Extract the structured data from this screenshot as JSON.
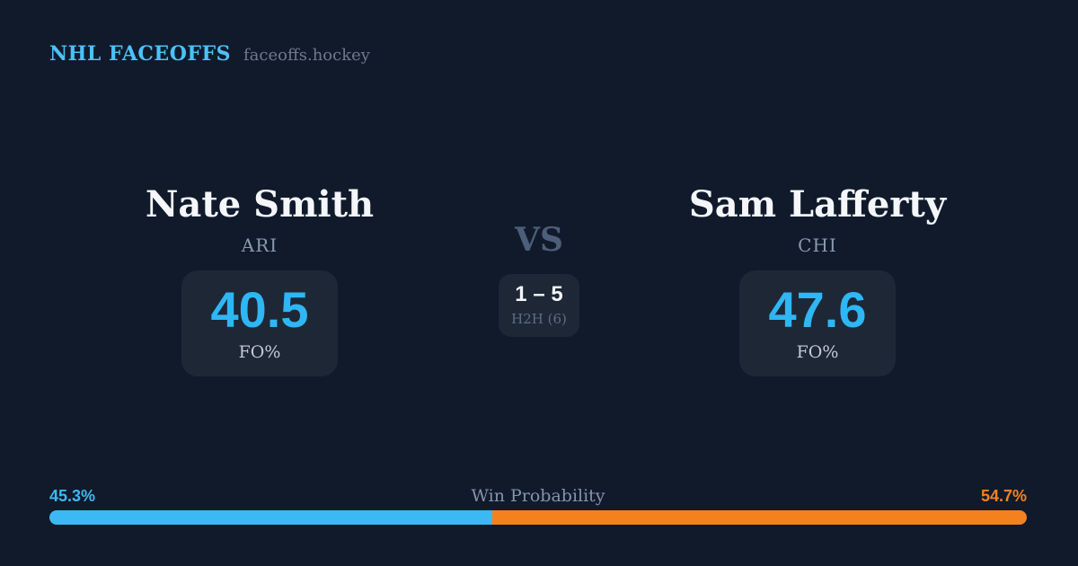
{
  "header": {
    "title": "NHL FACEOFFS",
    "site": "faceoffs.hockey"
  },
  "matchup": {
    "player_left": {
      "name": "Nate Smith",
      "team": "ARI",
      "stat_value": "40.5",
      "stat_label": "FO%"
    },
    "player_right": {
      "name": "Sam Lafferty",
      "team": "CHI",
      "stat_value": "47.6",
      "stat_label": "FO%"
    },
    "vs_label": "VS",
    "h2h": {
      "score": "1 – 5",
      "label": "H2H (6)"
    }
  },
  "win_probability": {
    "label": "Win Probability",
    "left_text": "45.3%",
    "right_text": "54.7%",
    "left_value": 45.3,
    "right_value": 54.7
  },
  "colors": {
    "background": "#101a2b",
    "card": "#1d2736",
    "accent_blue": "#3bb9f4",
    "accent_orange": "#f5811e",
    "text_primary": "#f4f6fa",
    "text_muted": "#8b99af"
  }
}
